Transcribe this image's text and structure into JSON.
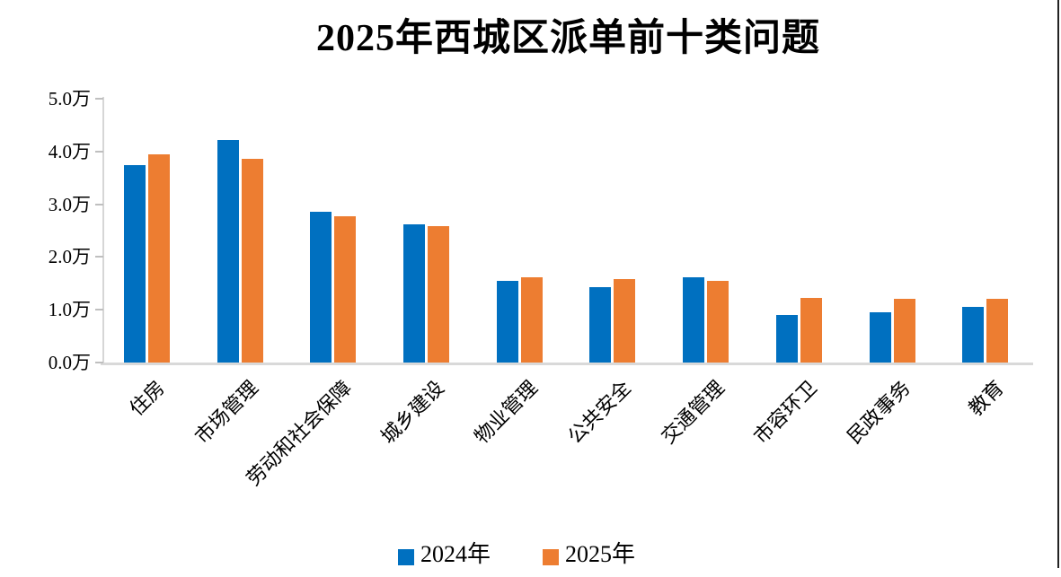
{
  "title": "2025年西城区派单前十类问题",
  "colors": {
    "series_2024": "#0070C0",
    "series_2025": "#ED7D31",
    "axis_line": "#D9D9D9",
    "tick_mark": "#BFBFBF",
    "text": "#000000"
  },
  "y_axis": {
    "tick_labels": [
      "5.0万",
      "4.0万",
      "3.0万",
      "2.0万",
      "1.0万",
      "0.0万"
    ],
    "tick_values": [
      5.0,
      4.0,
      3.0,
      2.0,
      1.0,
      0.0
    ],
    "unit": "万"
  },
  "chart_data": {
    "type": "bar",
    "title": "2025年西城区派单前十类问题",
    "categories": [
      "住房",
      "市场管理",
      "劳动和社会保障",
      "城乡建设",
      "物业管理",
      "公共安全",
      "交通管理",
      "市容环卫",
      "民政事务",
      "教育"
    ],
    "series": [
      {
        "name": "2024年",
        "color": "#0070C0",
        "values": [
          3.75,
          4.22,
          2.86,
          2.62,
          1.55,
          1.43,
          1.61,
          0.9,
          0.95,
          1.05
        ]
      },
      {
        "name": "2025年",
        "color": "#ED7D31",
        "values": [
          3.94,
          3.86,
          2.77,
          2.58,
          1.61,
          1.58,
          1.55,
          1.22,
          1.21,
          1.2
        ]
      }
    ],
    "unit": "万",
    "xlabel": "",
    "ylabel": "",
    "ylim": [
      0,
      5
    ],
    "ytick_step": 1.0,
    "grid": false,
    "legend_position": "bottom",
    "bar_orientation": "vertical",
    "xlabel_rotation_deg": 45
  }
}
